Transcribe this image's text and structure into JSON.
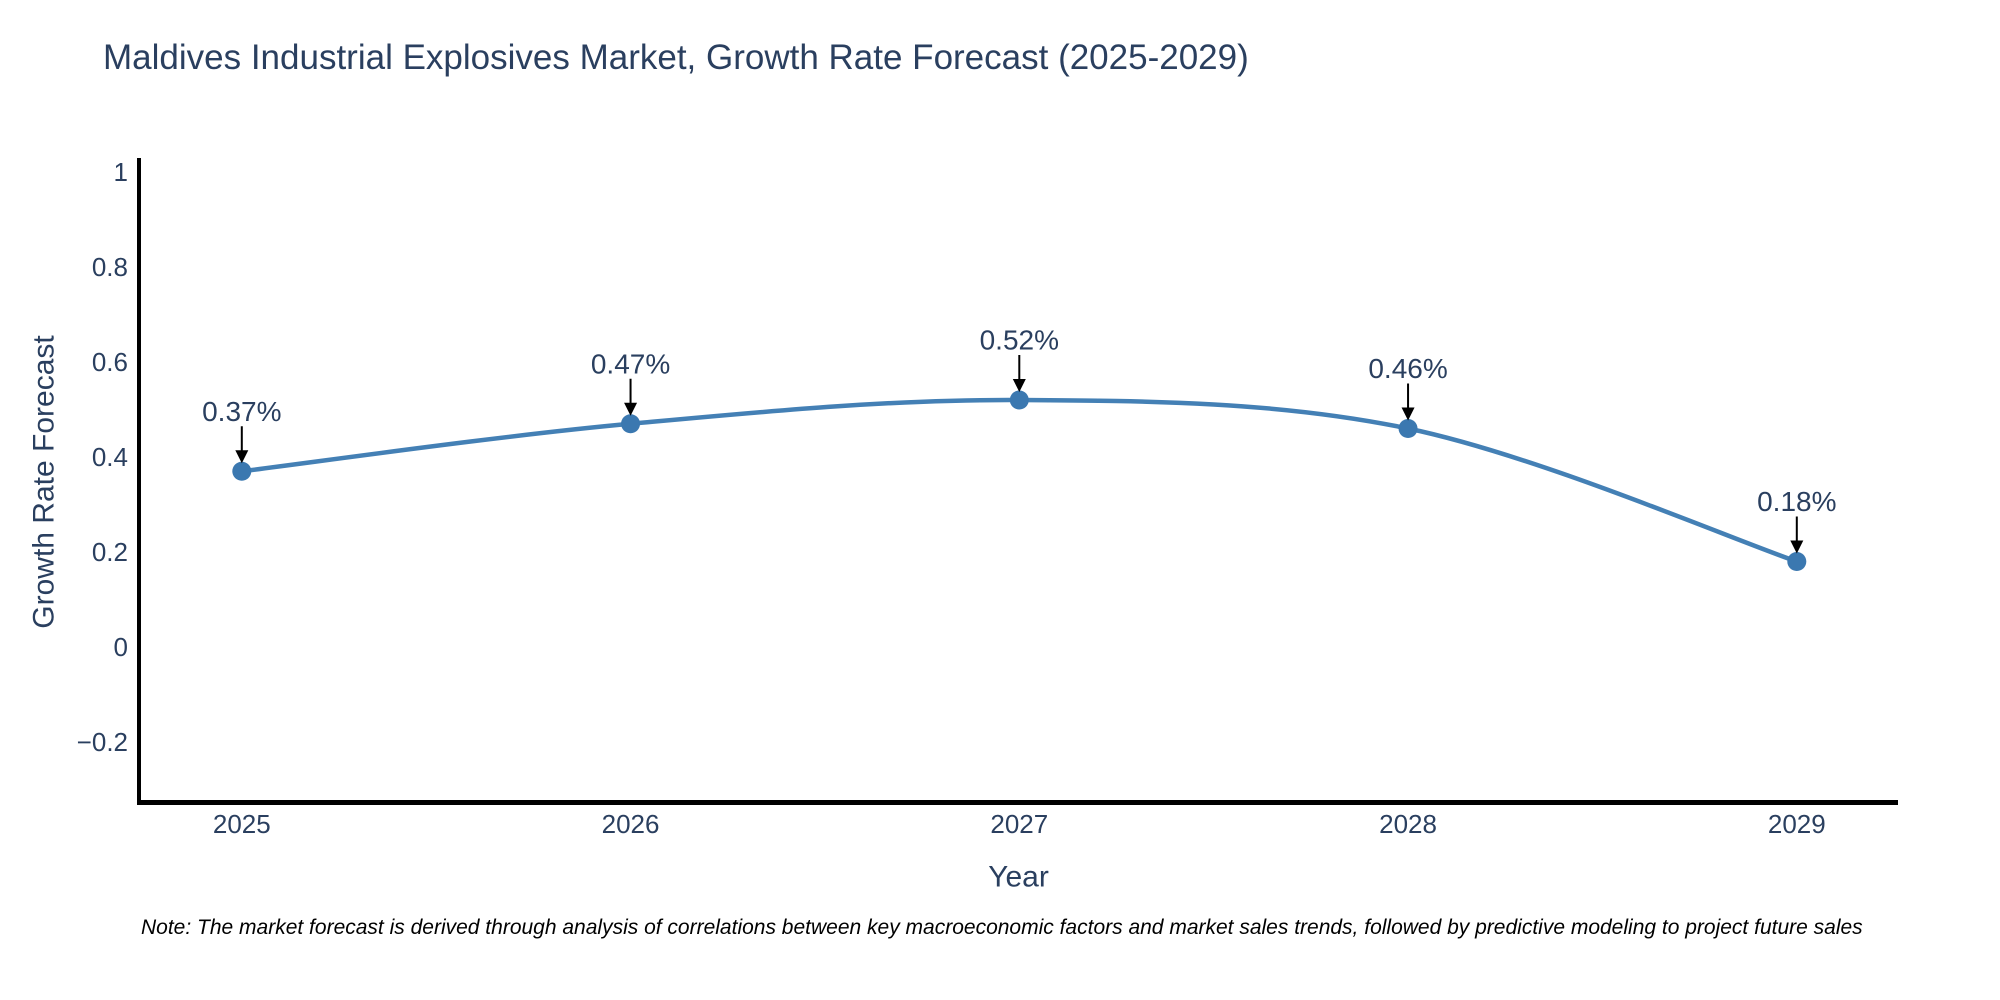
{
  "title": "Maldives Industrial Explosives Market, Growth Rate Forecast (2025-2029)",
  "note": "Note: The market forecast is derived through analysis of correlations between key macroeconomic factors and market sales trends, followed by predictive modeling to project future sales",
  "chart_data": {
    "type": "line",
    "line_shape": "spline",
    "grid": false,
    "legend": "none",
    "title": "Maldives Industrial Explosives Market, Growth Rate Forecast (2025-2029)",
    "xlabel": "Year",
    "ylabel": "Growth Rate Forecast",
    "categories": [
      "2025",
      "2026",
      "2027",
      "2028",
      "2029"
    ],
    "values": [
      0.37,
      0.47,
      0.52,
      0.46,
      0.18
    ],
    "point_labels": [
      "0.37%",
      "0.47%",
      "0.52%",
      "0.46%",
      "0.18%"
    ],
    "ylim": [
      -0.33,
      1.03
    ],
    "ytick_values": [
      1,
      0.8,
      0.6,
      0.4,
      0.2,
      0,
      -0.2
    ],
    "ytick_labels": [
      "1",
      "0.8",
      "0.6",
      "0.4",
      "0.2",
      "0",
      "−0.2"
    ],
    "colors": {
      "line": "#4480b5",
      "marker": "#3b78b0",
      "axis_line": "#000000",
      "chart_text": "#2a3f5f",
      "annotation_text": "#2a3f5f",
      "arrow": "#000000",
      "background": "#ffffff"
    }
  }
}
